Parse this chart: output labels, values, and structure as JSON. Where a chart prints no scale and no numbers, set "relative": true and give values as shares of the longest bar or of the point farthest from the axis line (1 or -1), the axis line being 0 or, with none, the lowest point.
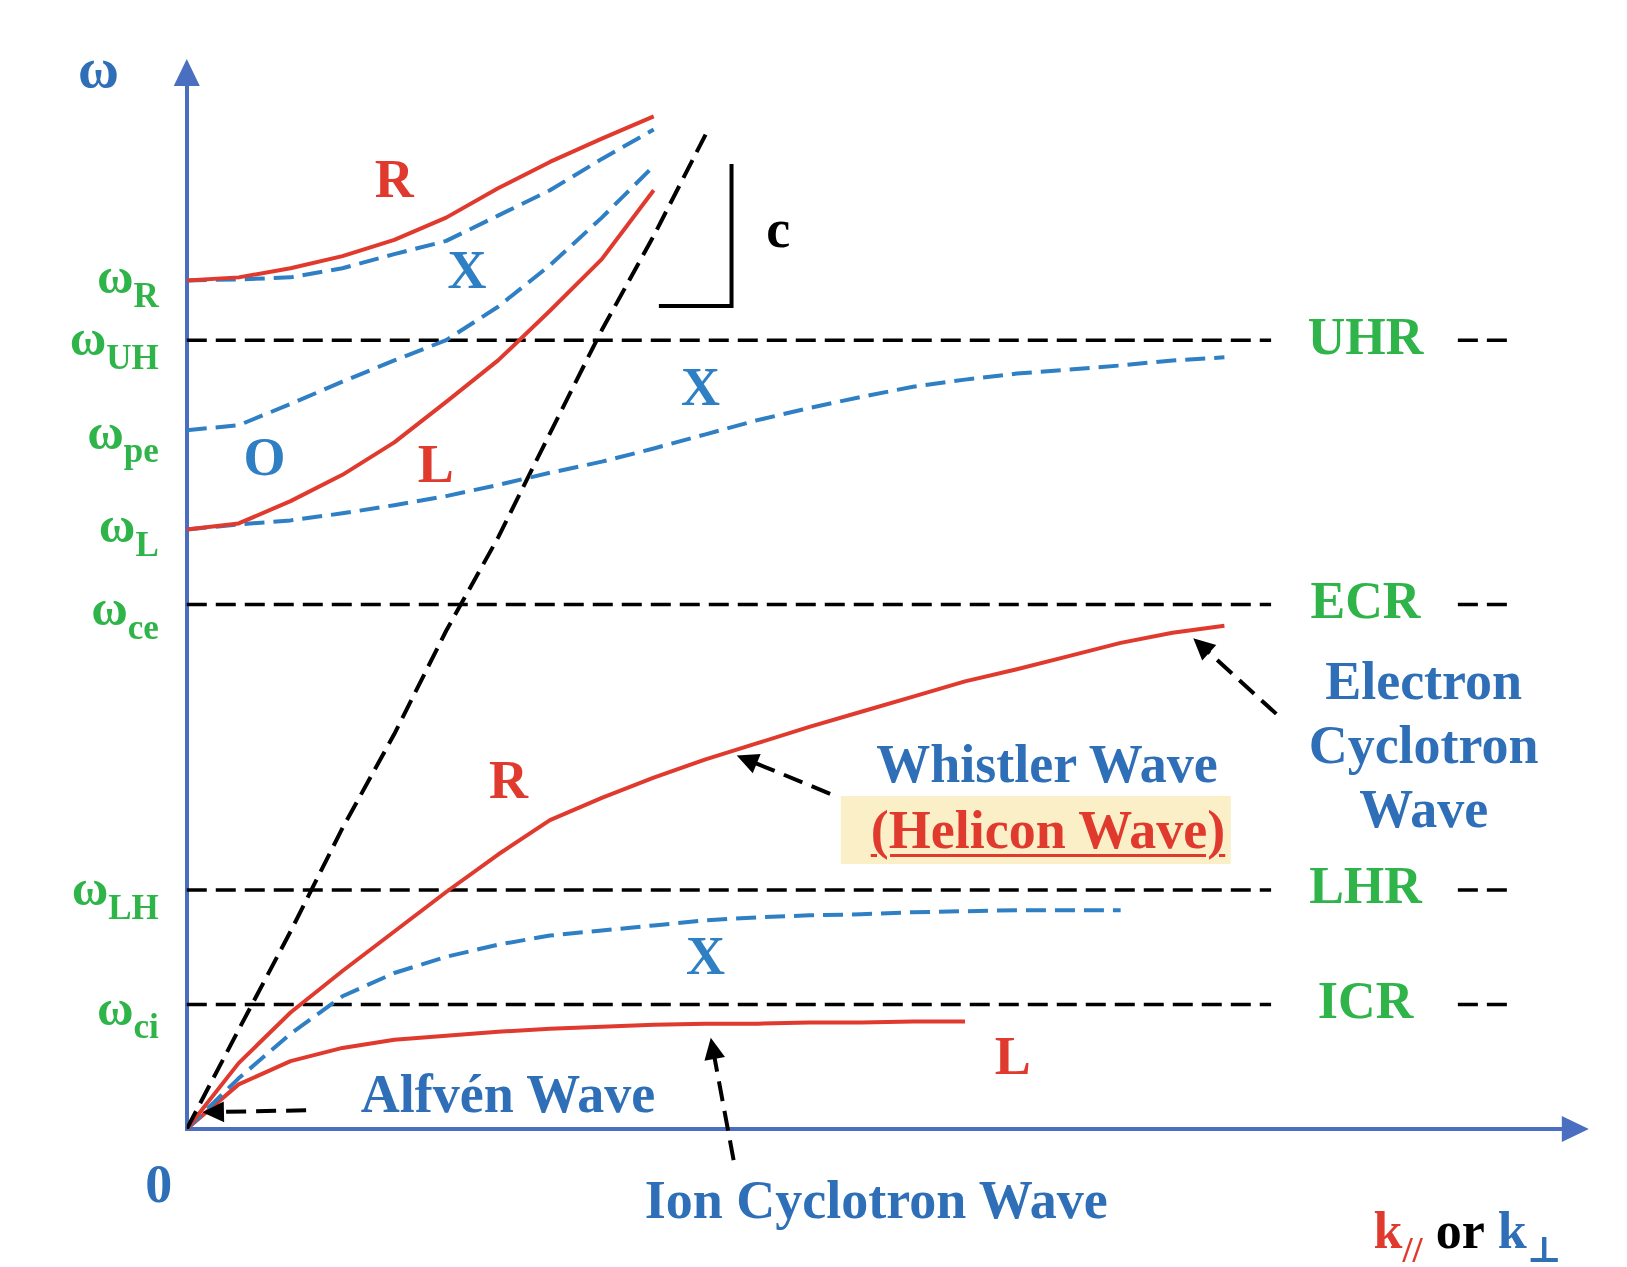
{
  "chart_data": {
    "type": "line",
    "relative": true,
    "xlabel": "k$_{//}$ or k$_{⊥}$",
    "ylabel": "ω",
    "categories": [
      null,
      null,
      null,
      null,
      null,
      null,
      null,
      null,
      null,
      null,
      null,
      null,
      null,
      null,
      null,
      null,
      null,
      null,
      null,
      null,
      null
    ],
    "grid": false,
    "marker": "none",
    "series": [
      {
        "name": "R",
        "color": "#e03a2e",
        "line_style": "solid",
        "values": [
          0.838,
          0.841,
          0.85,
          0.862,
          0.878,
          0.9,
          0.929,
          0.955,
          0.978,
          1,
          null,
          null,
          null,
          null,
          null,
          null,
          null,
          null,
          null,
          null,
          null
        ]
      },
      {
        "name": "X",
        "color": "#2e7fc4",
        "line_style": "dashed",
        "values": [
          0.838,
          0.839,
          0.841,
          0.85,
          0.864,
          0.877,
          0.902,
          0.927,
          0.958,
          0.987,
          null,
          null,
          null,
          null,
          null,
          null,
          null,
          null,
          null,
          null,
          null
        ]
      },
      {
        "name": "O",
        "color": "#2e7fc4",
        "line_style": "dashed",
        "values": [
          0.69,
          0.695,
          0.716,
          0.738,
          0.759,
          0.779,
          0.812,
          0.853,
          0.9,
          0.951,
          null,
          null,
          null,
          null,
          null,
          null,
          null,
          null,
          null,
          null,
          null
        ]
      },
      {
        "name": "L",
        "color": "#e03a2e",
        "line_style": "solid",
        "values": [
          0.592,
          0.598,
          0.62,
          0.646,
          0.678,
          0.718,
          0.759,
          0.808,
          0.859,
          0.927,
          null,
          null,
          null,
          null,
          null,
          null,
          null,
          null,
          null,
          null,
          null
        ]
      },
      {
        "name": "X",
        "color": "#2e7fc4",
        "line_style": "dashed",
        "values": [
          0.592,
          0.597,
          0.601,
          0.608,
          0.616,
          0.625,
          0.636,
          0.648,
          0.659,
          0.672,
          0.686,
          0.7,
          0.712,
          0.723,
          0.733,
          0.74,
          0.746,
          0.75,
          0.754,
          0.759,
          0.762
        ]
      },
      {
        "color": "#000000",
        "line_style": "dashed",
        "values": [
          0,
          0.098,
          0.195,
          0.297,
          0.39,
          0.492,
          0.584,
          0.687,
          0.789,
          0.882,
          0.982,
          null,
          null,
          null,
          null,
          null,
          null,
          null,
          null,
          null,
          null
        ]
      },
      {
        "name": "R",
        "color": "#e03a2e",
        "line_style": "solid",
        "values": [
          0,
          0.065,
          0.115,
          0.156,
          0.195,
          0.234,
          0.271,
          0.305,
          0.327,
          0.347,
          0.365,
          0.381,
          0.397,
          0.412,
          0.427,
          0.442,
          0.454,
          0.467,
          0.48,
          0.49,
          0.497
        ]
      },
      {
        "name": "X",
        "color": "#2e7fc4",
        "line_style": "dashed",
        "values": [
          0,
          0.05,
          0.094,
          0.131,
          0.154,
          0.17,
          0.182,
          0.191,
          0.196,
          0.201,
          0.206,
          0.209,
          0.211,
          0.212,
          0.214,
          0.215,
          0.216,
          0.216,
          0.216,
          null,
          null
        ]
      },
      {
        "name": "L",
        "color": "#e03a2e",
        "line_style": "solid",
        "values": [
          0,
          0.044,
          0.067,
          0.08,
          0.088,
          0.092,
          0.096,
          0.099,
          0.101,
          0.103,
          0.104,
          0.104,
          0.105,
          0.105,
          0.106,
          0.106,
          null,
          null,
          null,
          null,
          null
        ]
      }
    ],
    "ref_lines": [
      {
        "axis": "y",
        "value": 0.779,
        "label": "UHR",
        "color": "#000000",
        "line_style": "dashed"
      },
      {
        "axis": "y",
        "value": 0.518,
        "label": "ECR",
        "color": "#000000",
        "line_style": "dashed"
      },
      {
        "axis": "y",
        "value": 0.236,
        "label": "LHR",
        "color": "#000000",
        "line_style": "dashed"
      },
      {
        "axis": "y",
        "value": 0.123,
        "label": "ICR",
        "color": "#000000",
        "line_style": "dashed"
      }
    ],
    "annotations": [
      "ω$_{R}$",
      "ω$_{UH}$",
      "ω$_{pe}$",
      "ω$_{L}$",
      "ω$_{ce}$",
      "ω$_{LH}$",
      "ω$_{ci}$",
      "c",
      "Whistler Wave",
      "(Helicon Wave)",
      "Electron Cyclotron Wave",
      "Alfvén Wave",
      "Ion Cyclotron Wave",
      "0"
    ]
  }
}
